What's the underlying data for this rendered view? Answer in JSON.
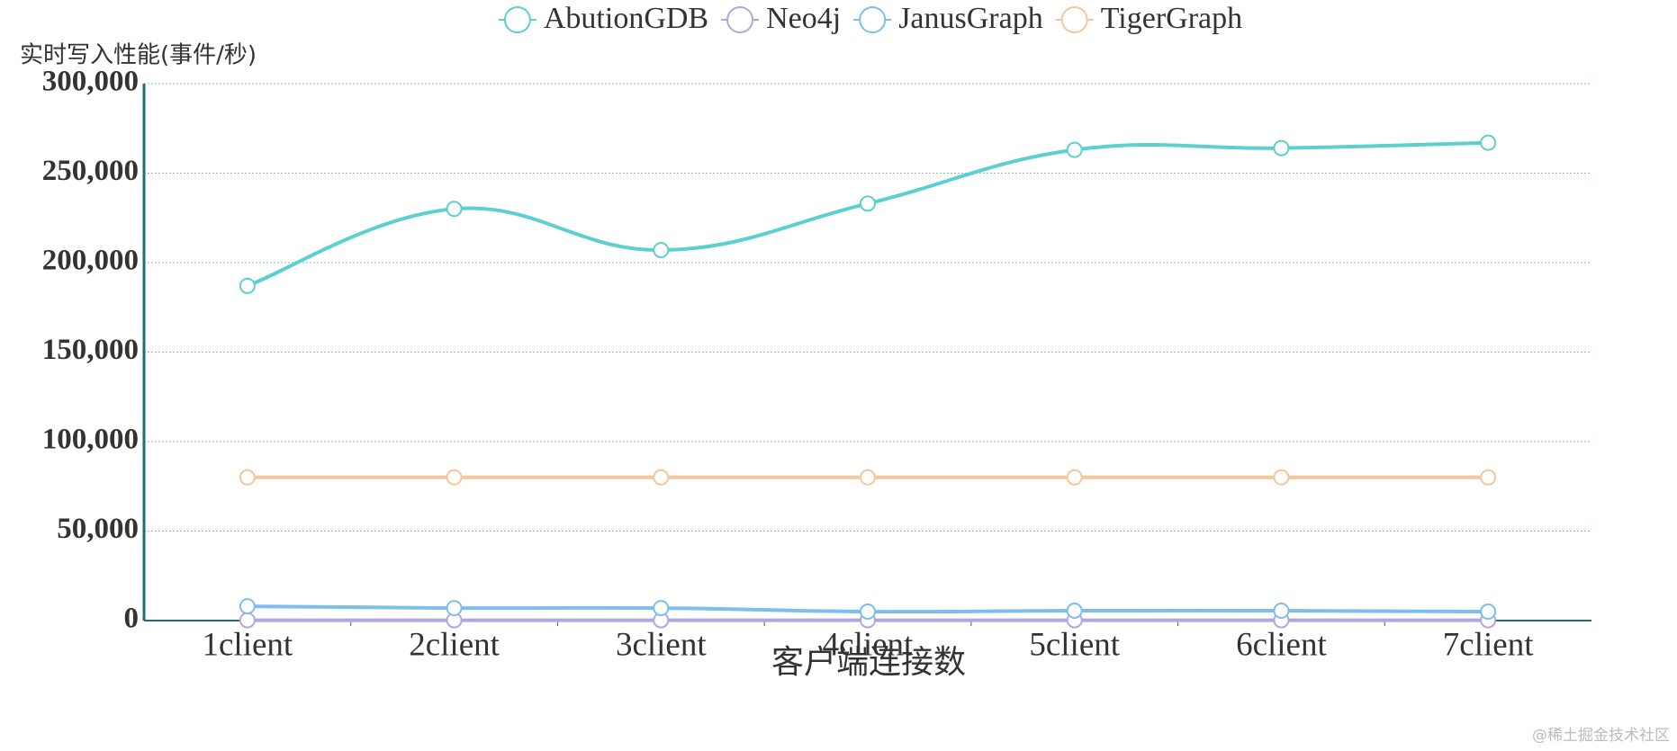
{
  "chart_data": {
    "type": "line",
    "y_axis_label": "实时写入性能(事件/秒)",
    "x_axis_label": "客户端连接数",
    "watermark": "@稀土掘金技术社区",
    "categories": [
      "1client",
      "2client",
      "3client",
      "4client",
      "5client",
      "6client",
      "7client"
    ],
    "series": [
      {
        "name": "AbutionGDB",
        "color": "#5ccfcf",
        "values": [
          187000,
          230000,
          207000,
          233000,
          263000,
          264000,
          267000
        ]
      },
      {
        "name": "Neo4j",
        "color": "#b3a6e0",
        "values": [
          200,
          200,
          200,
          200,
          200,
          200,
          200
        ]
      },
      {
        "name": "JanusGraph",
        "color": "#7bbfea",
        "values": [
          8000,
          7000,
          7000,
          5000,
          5500,
          5500,
          5000
        ]
      },
      {
        "name": "TigerGraph",
        "color": "#f6c59a",
        "values": [
          80000,
          80000,
          80000,
          80000,
          80000,
          80000,
          80000
        ]
      }
    ],
    "ylim": [
      0,
      300000
    ],
    "yticks": [
      {
        "value": 0,
        "label": "0"
      },
      {
        "value": 50000,
        "label": "50,000"
      },
      {
        "value": 100000,
        "label": "100,000"
      },
      {
        "value": 150000,
        "label": "150,000"
      },
      {
        "value": 200000,
        "label": "200,000"
      },
      {
        "value": 250000,
        "label": "250,000"
      },
      {
        "value": 300000,
        "label": "300,000"
      }
    ],
    "grid": true,
    "smooth": true,
    "legend_position": "top"
  }
}
